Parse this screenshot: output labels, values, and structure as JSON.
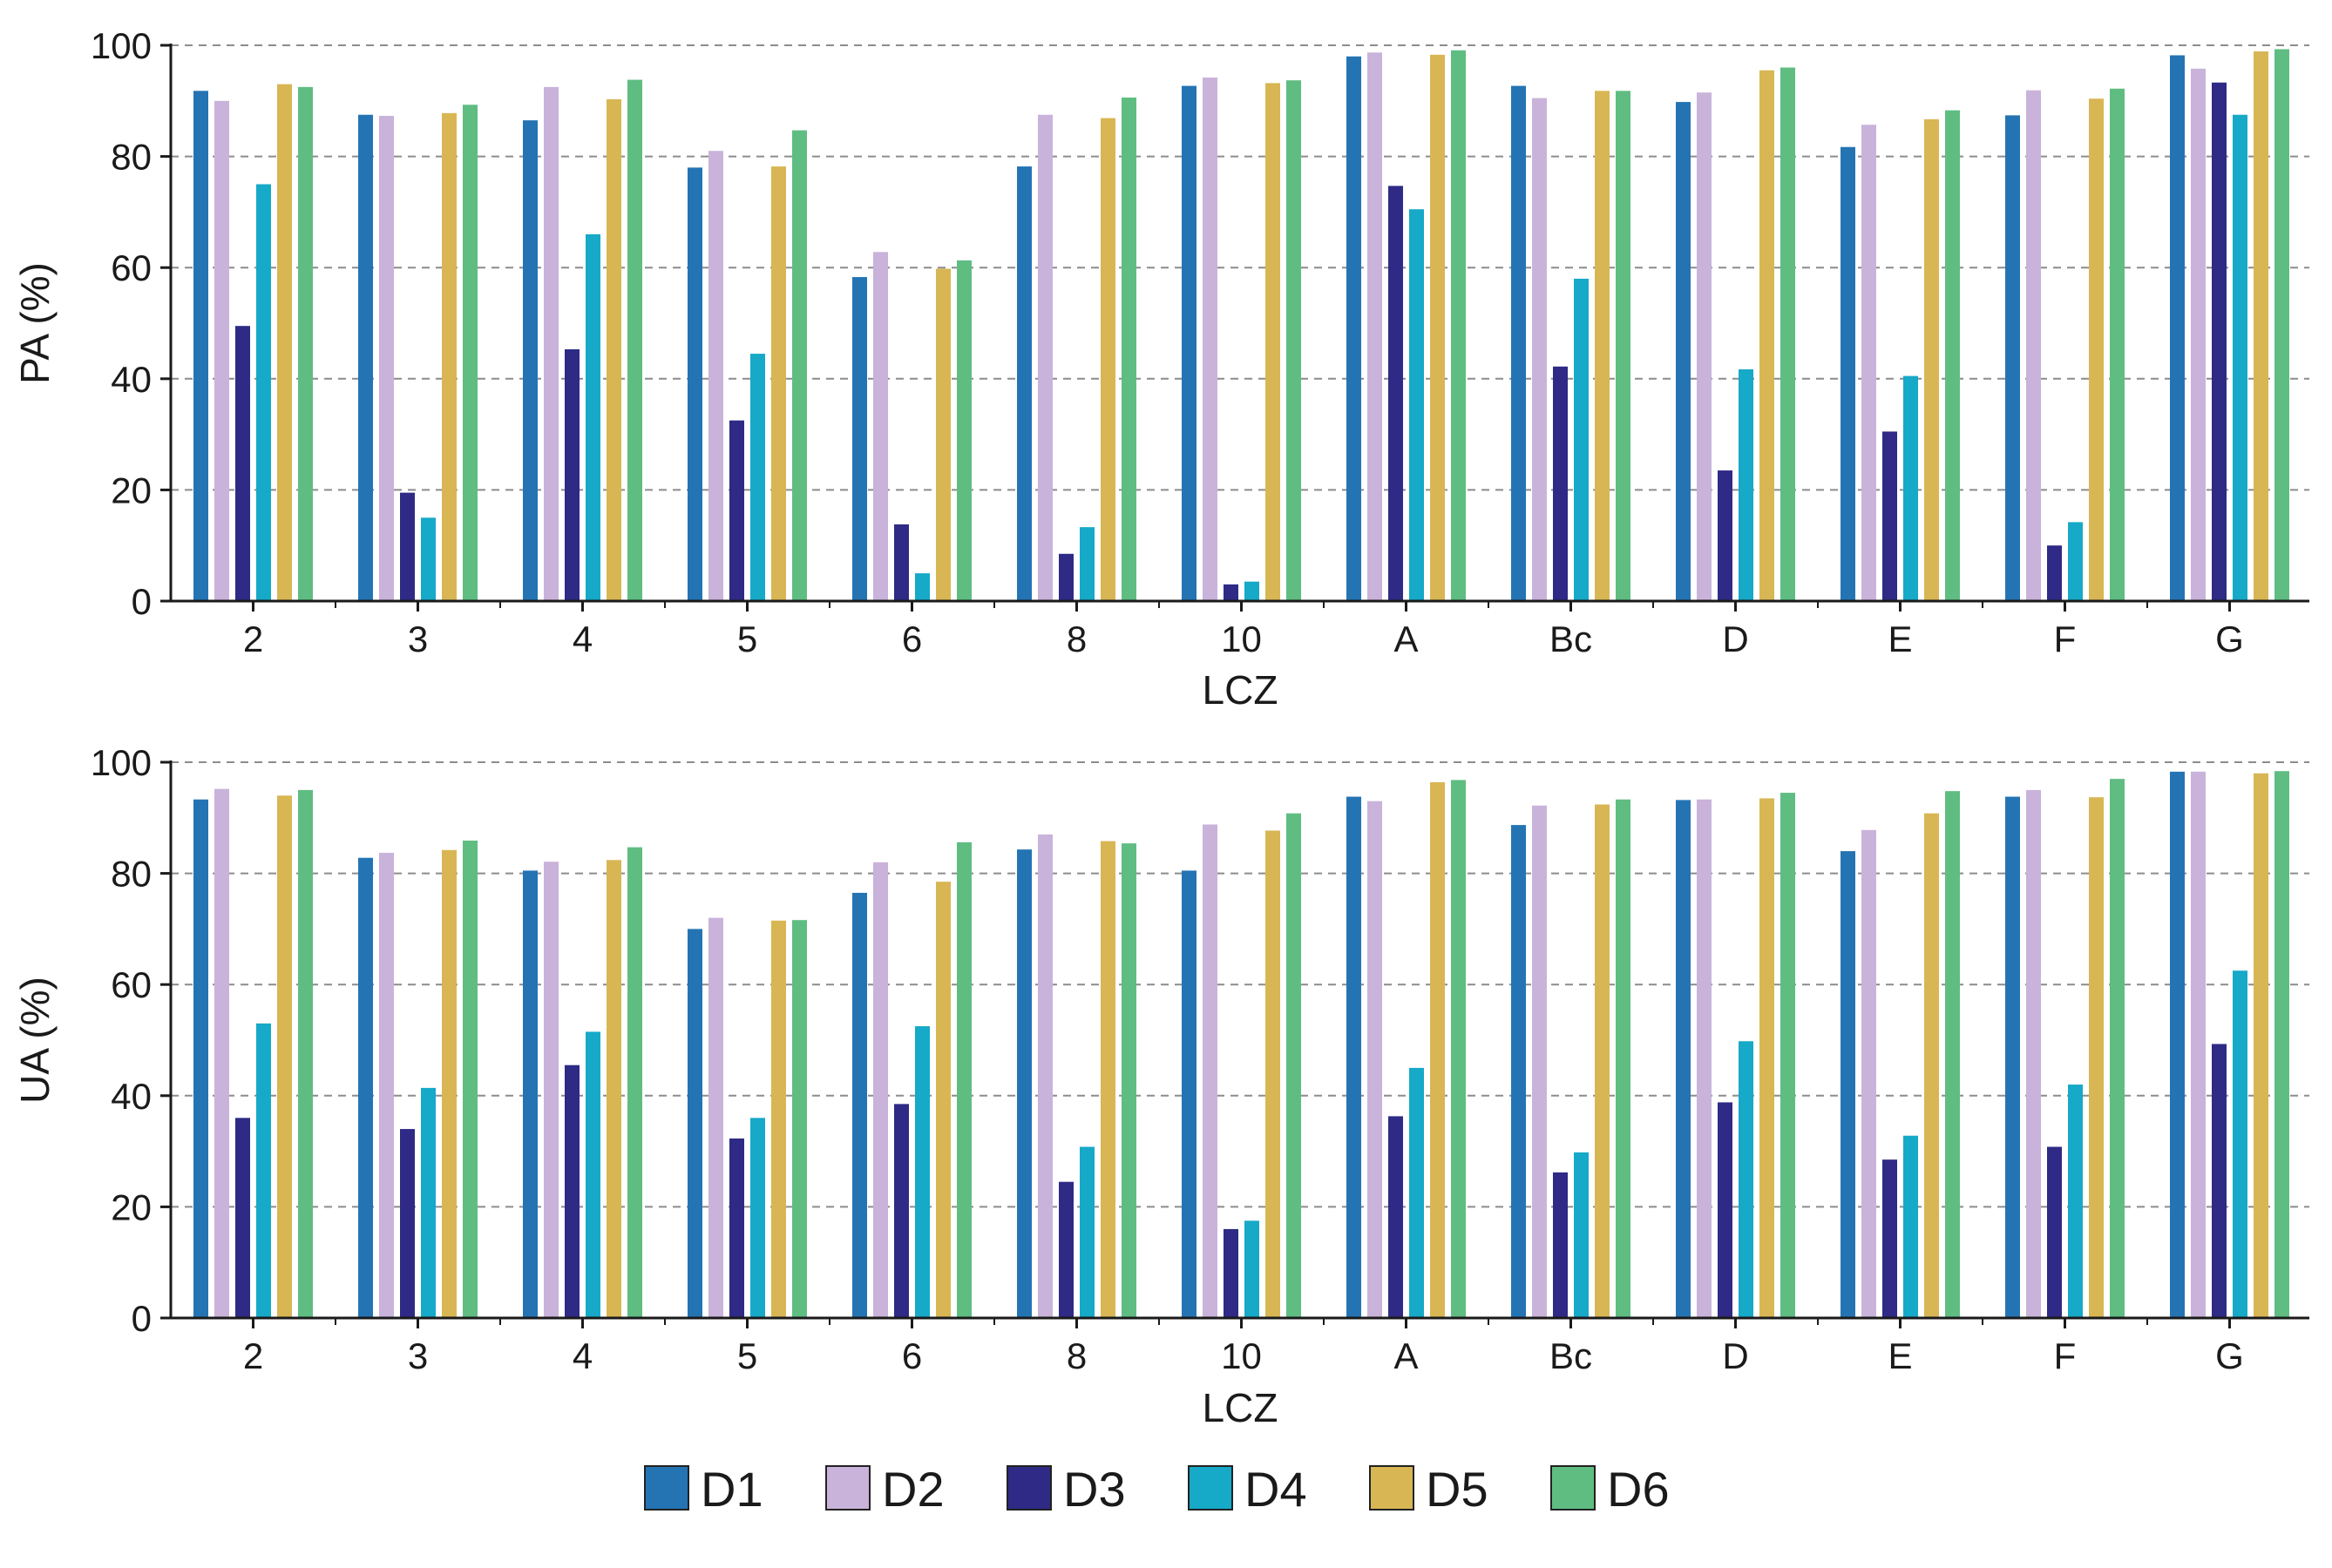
{
  "colors": {
    "D1": "#2474b4",
    "D2": "#c9b3da",
    "D3": "#2e2a85",
    "D4": "#16a9c8",
    "D5": "#d8b654",
    "D6": "#5fbd82",
    "axis": "#1a1a1a",
    "grid": "#8c8c8c"
  },
  "legend": {
    "items": [
      "D1",
      "D2",
      "D3",
      "D4",
      "D5",
      "D6"
    ]
  },
  "chart_data": [
    {
      "type": "bar",
      "title": "",
      "xlabel": "LCZ",
      "ylabel": "PA (%)",
      "ylim": [
        0,
        100
      ],
      "yticks": [
        0,
        20,
        40,
        60,
        80,
        100
      ],
      "grid": "horizontal dashed",
      "categories": [
        "2",
        "3",
        "4",
        "5",
        "6",
        "8",
        "10",
        "A",
        "Bc",
        "D",
        "E",
        "F",
        "G"
      ],
      "series": [
        {
          "name": "D1",
          "values": [
            91.8,
            87.5,
            86.5,
            78,
            58.3,
            78.2,
            92.7,
            98,
            92.7,
            89.8,
            81.7,
            87.4,
            98.2
          ]
        },
        {
          "name": "D2",
          "values": [
            90,
            87.3,
            92.5,
            81,
            62.8,
            87.5,
            94.2,
            98.7,
            90.5,
            91.5,
            85.7,
            91.9,
            95.8
          ]
        },
        {
          "name": "D3",
          "values": [
            49.5,
            19.5,
            45.3,
            32.5,
            13.8,
            8.5,
            3,
            74.7,
            42.2,
            23.5,
            30.5,
            10,
            93.3
          ]
        },
        {
          "name": "D4",
          "values": [
            75,
            15,
            66,
            44.5,
            5,
            13.3,
            3.5,
            70.5,
            58,
            41.7,
            40.5,
            14.2,
            87.5
          ]
        },
        {
          "name": "D5",
          "values": [
            93,
            87.8,
            90.3,
            78.2,
            59.8,
            86.9,
            93.2,
            98.3,
            91.8,
            95.5,
            86.7,
            90.4,
            98.9
          ]
        },
        {
          "name": "D6",
          "values": [
            92.5,
            89.3,
            93.8,
            84.7,
            61.3,
            90.6,
            93.7,
            99.1,
            91.8,
            96,
            88.3,
            92.2,
            99.3
          ]
        }
      ]
    },
    {
      "type": "bar",
      "title": "",
      "xlabel": "LCZ",
      "ylabel": "UA (%)",
      "ylim": [
        0,
        100
      ],
      "yticks": [
        0,
        20,
        40,
        60,
        80,
        100
      ],
      "grid": "horizontal dashed",
      "categories": [
        "2",
        "3",
        "4",
        "5",
        "6",
        "8",
        "10",
        "A",
        "Bc",
        "D",
        "E",
        "F",
        "G"
      ],
      "series": [
        {
          "name": "D1",
          "values": [
            93.3,
            82.8,
            80.5,
            70,
            76.5,
            84.3,
            80.5,
            93.8,
            88.7,
            93.2,
            84,
            93.8,
            98.3
          ]
        },
        {
          "name": "D2",
          "values": [
            95.2,
            83.7,
            82.1,
            72,
            82,
            87,
            88.8,
            93,
            92.2,
            93.3,
            87.8,
            95,
            98.3
          ]
        },
        {
          "name": "D3",
          "values": [
            36,
            34,
            45.5,
            32.3,
            38.5,
            24.5,
            16,
            36.3,
            26.2,
            38.8,
            28.5,
            30.8,
            49.3
          ]
        },
        {
          "name": "D4",
          "values": [
            53,
            41.4,
            51.5,
            36,
            52.5,
            30.8,
            17.5,
            45,
            29.8,
            49.8,
            32.8,
            42,
            62.5
          ]
        },
        {
          "name": "D5",
          "values": [
            94,
            84.2,
            82.4,
            71.5,
            78.5,
            85.8,
            87.7,
            96.4,
            92.4,
            93.5,
            90.8,
            93.7,
            98
          ]
        },
        {
          "name": "D6",
          "values": [
            95,
            85.9,
            84.7,
            71.6,
            85.6,
            85.4,
            90.8,
            96.8,
            93.3,
            94.5,
            94.8,
            97,
            98.4
          ]
        }
      ]
    }
  ]
}
